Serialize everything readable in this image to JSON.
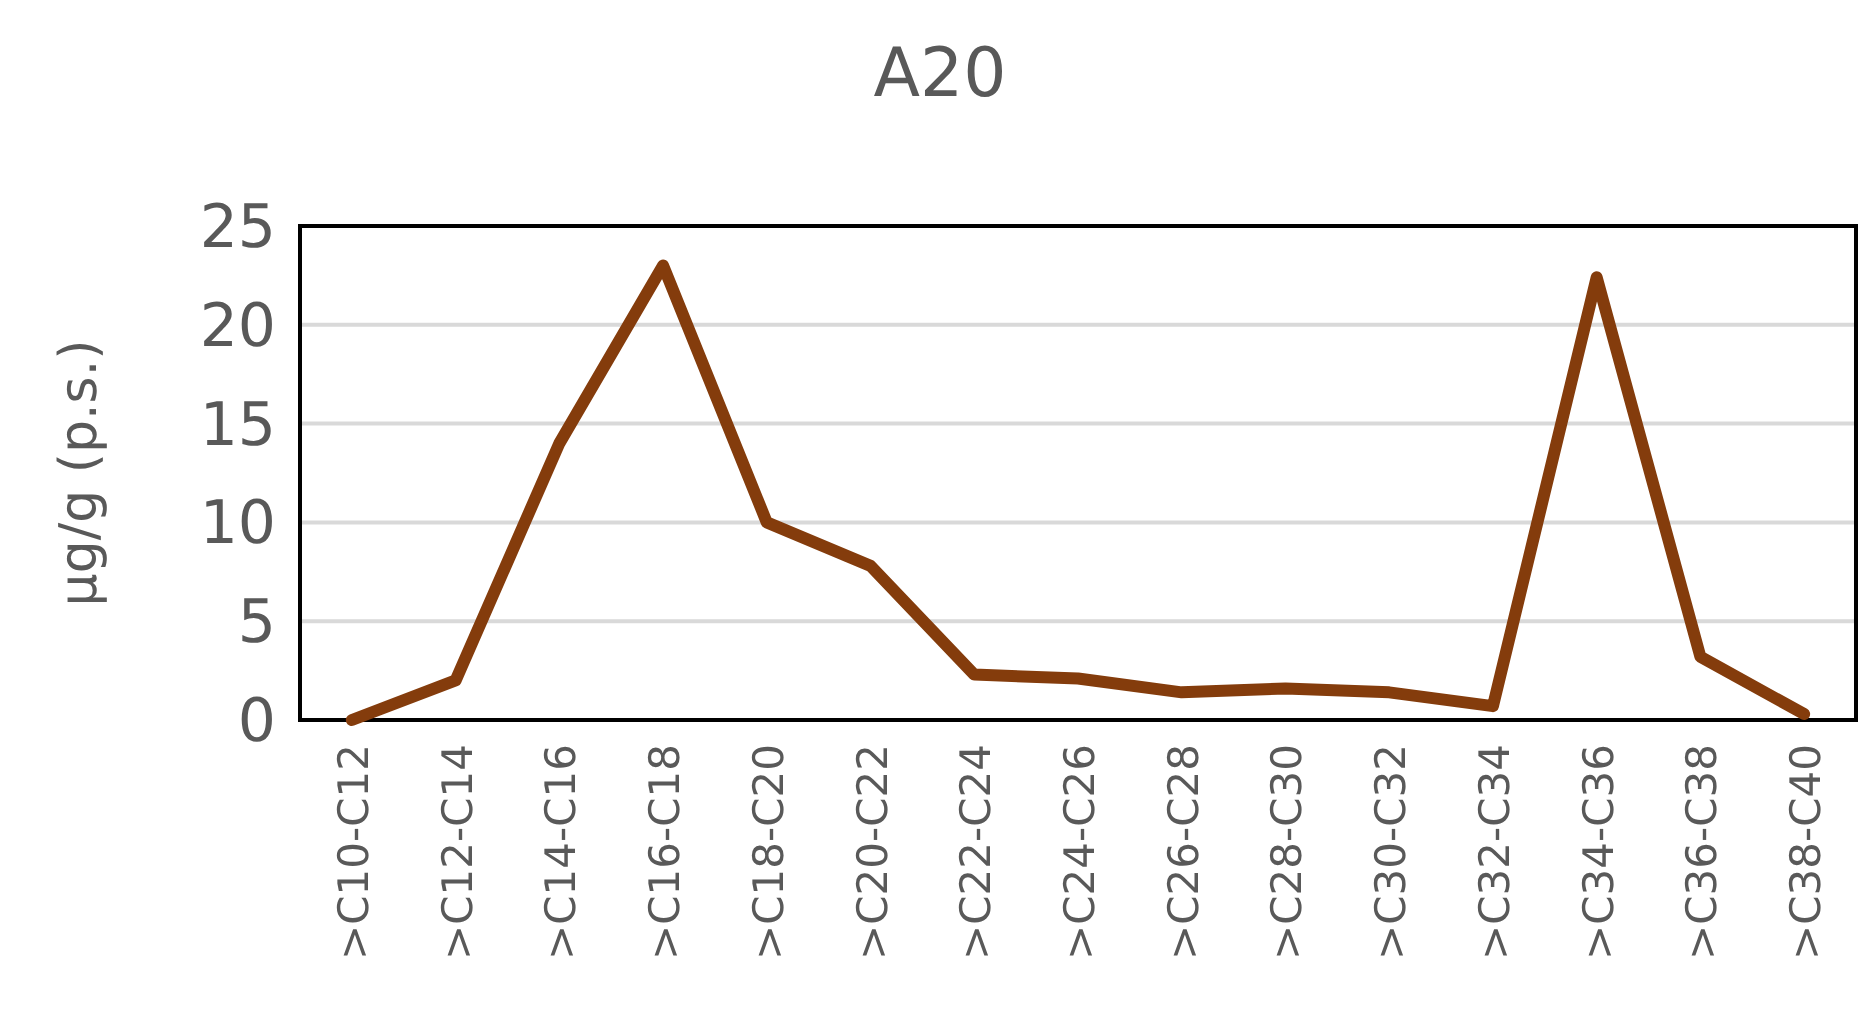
{
  "chart_data": {
    "type": "line",
    "title": "A20",
    "ylabel": "µg/g (p.s.)",
    "categories": [
      ">C10-C12",
      ">C12-C14",
      ">C14-C16",
      ">C16-C18",
      ">C18-C20",
      ">C20-C22",
      ">C22-C24",
      ">C24-C26",
      ">C26-C28",
      ">C28-C30",
      ">C30-C32",
      ">C32-C34",
      ">C34-C36",
      ">C36-C38",
      ">C38-C40"
    ],
    "series": [
      {
        "color": "#843c0c",
        "values": [
          0,
          2.0,
          14,
          23,
          10,
          7.8,
          2.3,
          2.1,
          1.4,
          1.6,
          1.4,
          0.7,
          22.4,
          3.2,
          0.3
        ]
      }
    ],
    "ylim": [
      0,
      25
    ],
    "yticks": [
      0,
      5,
      10,
      15,
      20,
      25
    ],
    "grid": "y",
    "marker": "none",
    "line_style": "solid"
  }
}
